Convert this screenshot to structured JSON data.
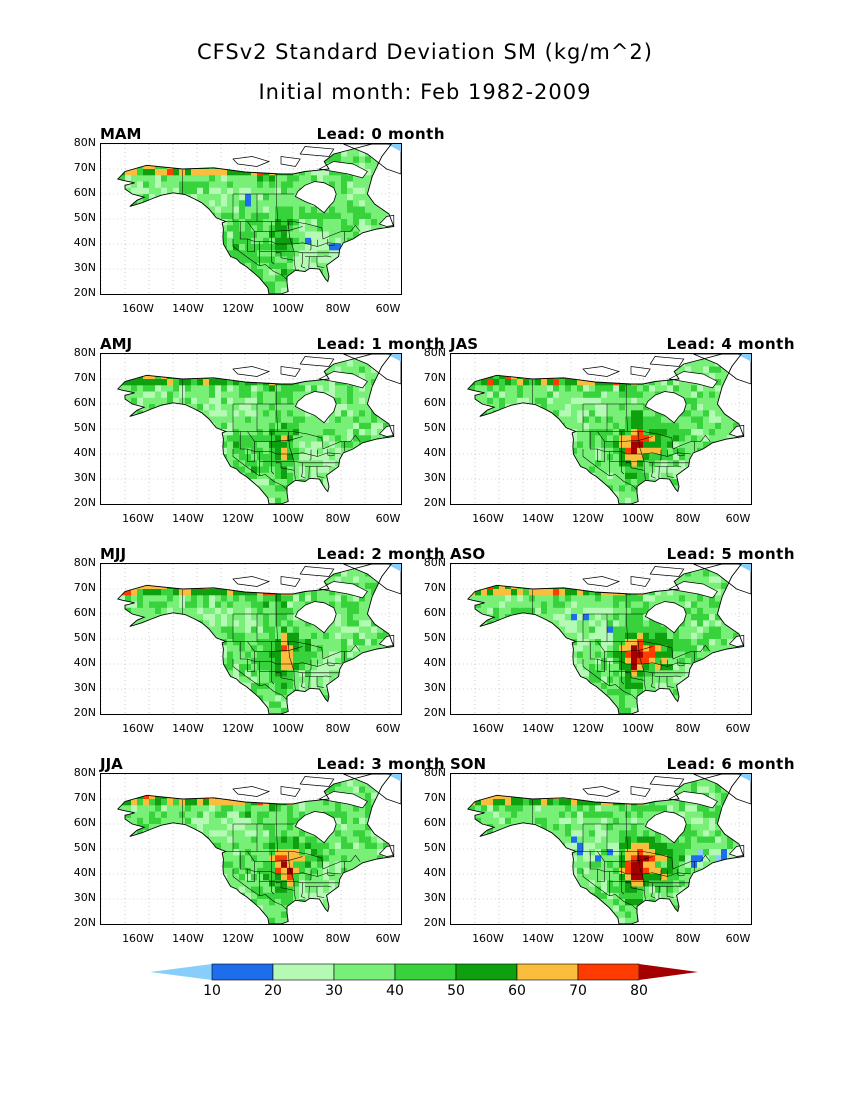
{
  "title_line1": "CFSv2 Standard Deviation SM (kg/m^2)",
  "title_line2": "Initial month: Feb 1982-2009",
  "y_ticks": [
    "80N",
    "70N",
    "60N",
    "50N",
    "40N",
    "30N",
    "20N"
  ],
  "x_ticks": [
    "160W",
    "140W",
    "120W",
    "100W",
    "80W",
    "60W"
  ],
  "panels": [
    {
      "season": "MAM",
      "lead": "Lead: 0 month",
      "lead_months": 0
    },
    {
      "season": "AMJ",
      "lead": "Lead: 1 month",
      "lead_months": 1
    },
    {
      "season": "JAS",
      "lead": "Lead: 4 month",
      "lead_months": 4
    },
    {
      "season": "MJJ",
      "lead": "Lead: 2 month",
      "lead_months": 2
    },
    {
      "season": "ASO",
      "lead": "Lead: 5 month",
      "lead_months": 5
    },
    {
      "season": "JJA",
      "lead": "Lead: 3 month",
      "lead_months": 3
    },
    {
      "season": "SON",
      "lead": "Lead: 6 month",
      "lead_months": 6
    }
  ],
  "colorbar": {
    "labels": [
      "10",
      "20",
      "30",
      "40",
      "50",
      "60",
      "70",
      "80"
    ],
    "colors": [
      "#87cefa",
      "#1e6eeb",
      "#b4fab4",
      "#78f078",
      "#37d23c",
      "#0fa00f",
      "#fabe3c",
      "#ff3c00",
      "#a50000"
    ]
  }
}
